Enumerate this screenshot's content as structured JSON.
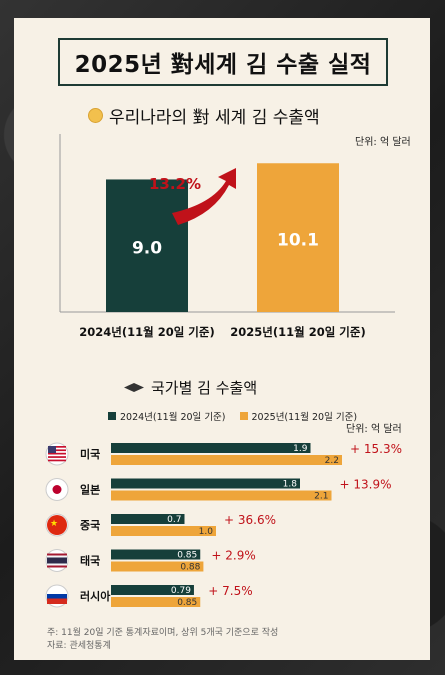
{
  "title": "2025년  對세계 김 수출 실적",
  "section1": {
    "title": "우리나라의 對 세계 김 수출액",
    "unit": "단위: 억 달러",
    "growth": "13.2%"
  },
  "section2": {
    "title": "국가별 김 수출액",
    "unit": "단위: 억 달러"
  },
  "notes": {
    "line1": "주: 11월 20일 기준 통계자료이며, 상위 5개국 기준으로 작성",
    "line2": "자료: 관세청통계"
  },
  "colors": {
    "dark": "#163f3a",
    "orange": "#eea53a",
    "red": "#c0121a"
  },
  "chart_data": [
    {
      "type": "bar",
      "categories": [
        "2024년(11월 20일 기준)",
        "2025년(11월 20일 기준)"
      ],
      "values": [
        9.0,
        10.1
      ],
      "value_labels": [
        "9.0",
        "10.1"
      ],
      "ylim": [
        0,
        11
      ],
      "annotation": "13.2%"
    },
    {
      "type": "bar",
      "orientation": "horizontal",
      "categories": [
        "미국",
        "일본",
        "중국",
        "태국",
        "러시아"
      ],
      "flags": [
        "us-flag-icon",
        "japan-flag-icon",
        "china-flag-icon",
        "thailand-flag-icon",
        "russia-flag-icon"
      ],
      "series": [
        {
          "name": "2024년(11월 20일 기준)",
          "values": [
            1.9,
            1.8,
            0.7,
            0.85,
            0.79
          ],
          "labels": [
            "1.9",
            "1.8",
            "0.7",
            "0.85",
            "0.79"
          ]
        },
        {
          "name": "2025년(11월 20일 기준)",
          "values": [
            2.2,
            2.1,
            1.0,
            0.88,
            0.85
          ],
          "labels": [
            "2.2",
            "2.1",
            "1.0",
            "0.88",
            "0.85"
          ]
        }
      ],
      "growth": [
        "+ 15.3%",
        "+ 13.9%",
        "+ 36.6%",
        "+ 2.9%",
        "+ 7.5%"
      ],
      "xlim": [
        0,
        2.2
      ]
    }
  ]
}
